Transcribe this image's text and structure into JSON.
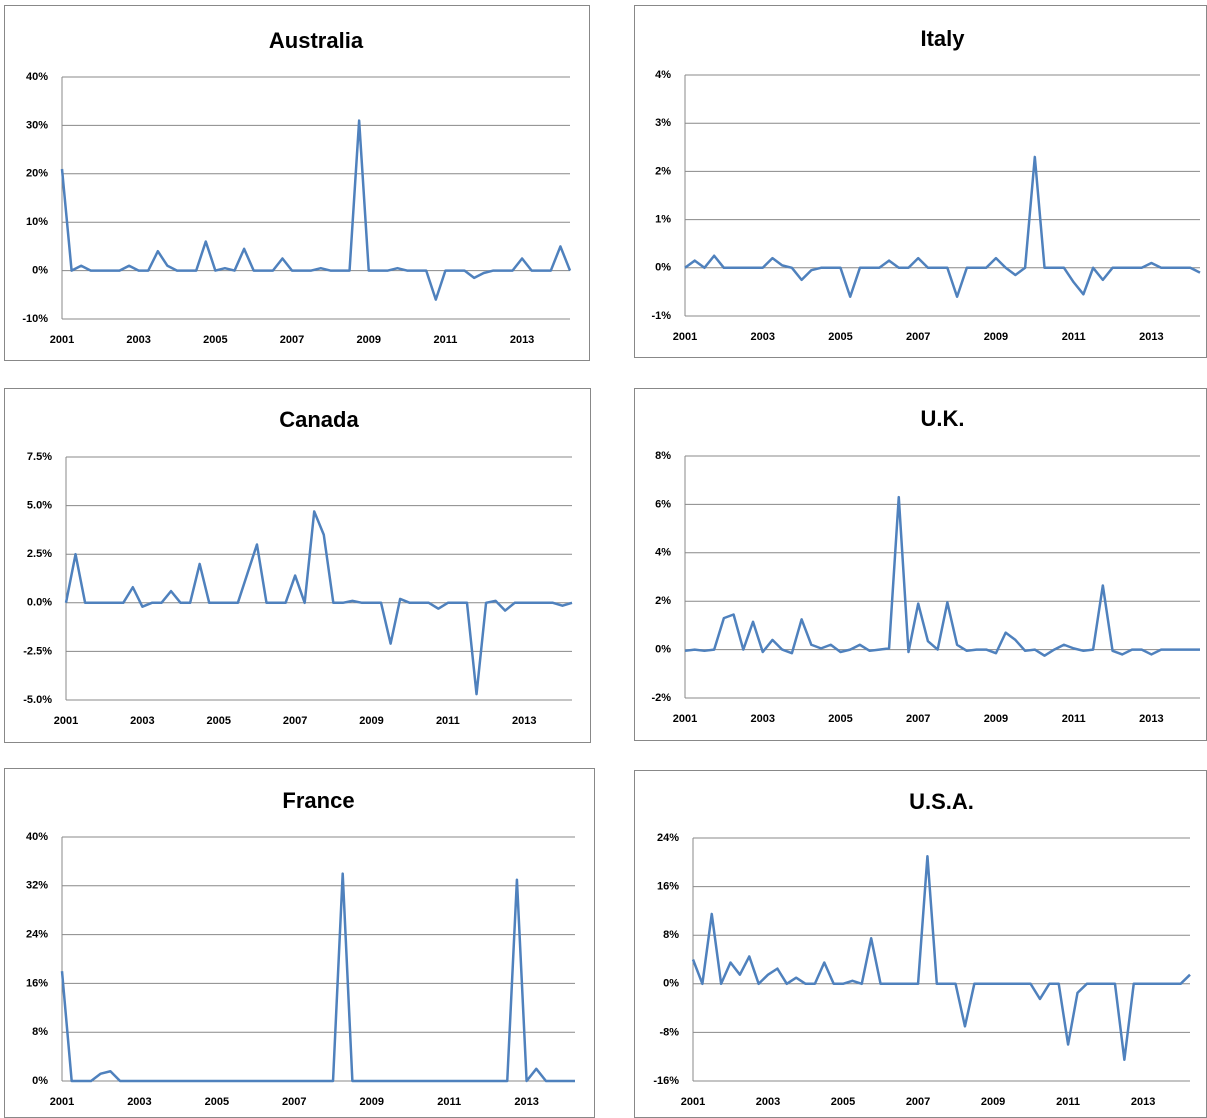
{
  "chart_data": [
    {
      "type": "line",
      "title": "Australia",
      "color": "#4f81bd",
      "grid": true,
      "categories": [
        "2001",
        null,
        null,
        null,
        null,
        null,
        null,
        null,
        "2003",
        null,
        null,
        null,
        null,
        null,
        null,
        null,
        "2005",
        null,
        null,
        null,
        null,
        null,
        null,
        null,
        "2007",
        null,
        null,
        null,
        null,
        null,
        null,
        null,
        "2009",
        null,
        null,
        null,
        null,
        null,
        null,
        null,
        "2011",
        null,
        null,
        null,
        null,
        null,
        null,
        null,
        "2013",
        null,
        null,
        null,
        null,
        null
      ],
      "values": [
        21,
        0,
        1,
        0,
        0,
        0,
        0,
        1,
        0,
        0,
        4,
        1,
        0,
        0,
        0,
        6,
        0,
        0.5,
        0,
        4.5,
        0,
        0,
        0,
        2.5,
        0,
        0,
        0,
        0.5,
        0,
        0,
        0,
        31,
        0,
        0,
        0,
        0.5,
        0,
        0,
        0,
        -6,
        0,
        0,
        0,
        -1.5,
        -0.5,
        0,
        0,
        0,
        2.5,
        0,
        0,
        0,
        5,
        0
      ],
      "ylim": [
        -10,
        40
      ],
      "yticks": [
        {
          "value": -10,
          "label": "-10%"
        },
        {
          "value": 0,
          "label": "0%"
        },
        {
          "value": 10,
          "label": "10%"
        },
        {
          "value": 20,
          "label": "20%"
        },
        {
          "value": 30,
          "label": "30%"
        },
        {
          "value": 40,
          "label": "40%"
        }
      ]
    },
    {
      "type": "line",
      "title": "Italy",
      "color": "#4f81bd",
      "grid": true,
      "categories": [
        "2001",
        null,
        null,
        null,
        null,
        null,
        null,
        null,
        "2003",
        null,
        null,
        null,
        null,
        null,
        null,
        null,
        "2005",
        null,
        null,
        null,
        null,
        null,
        null,
        null,
        "2007",
        null,
        null,
        null,
        null,
        null,
        null,
        null,
        "2009",
        null,
        null,
        null,
        null,
        null,
        null,
        null,
        "2011",
        null,
        null,
        null,
        null,
        null,
        null,
        null,
        "2013",
        null,
        null,
        null,
        null,
        null
      ],
      "values": [
        0,
        0.15,
        0,
        0.25,
        0,
        0,
        0,
        0,
        0,
        0.2,
        0.05,
        0,
        -0.25,
        -0.05,
        0,
        0,
        0,
        -0.6,
        0,
        0,
        0,
        0.15,
        0,
        0,
        0.2,
        0,
        0,
        0,
        -0.6,
        0,
        0,
        0,
        0.2,
        0,
        -0.15,
        0,
        2.3,
        0,
        0,
        0,
        -0.3,
        -0.55,
        0,
        -0.25,
        0,
        0,
        0,
        0,
        0.1,
        0,
        0,
        0,
        0,
        -0.1
      ],
      "ylim": [
        -1,
        4
      ],
      "yticks": [
        {
          "value": -1,
          "label": "-1%"
        },
        {
          "value": 0,
          "label": "0%"
        },
        {
          "value": 1,
          "label": "1%"
        },
        {
          "value": 2,
          "label": "2%"
        },
        {
          "value": 3,
          "label": "3%"
        },
        {
          "value": 4,
          "label": "4%"
        }
      ]
    },
    {
      "type": "line",
      "title": "Canada",
      "color": "#4f81bd",
      "grid": true,
      "categories": [
        "2001",
        null,
        null,
        null,
        null,
        null,
        null,
        null,
        "2003",
        null,
        null,
        null,
        null,
        null,
        null,
        null,
        "2005",
        null,
        null,
        null,
        null,
        null,
        null,
        null,
        "2007",
        null,
        null,
        null,
        null,
        null,
        null,
        null,
        "2009",
        null,
        null,
        null,
        null,
        null,
        null,
        null,
        "2011",
        null,
        null,
        null,
        null,
        null,
        null,
        null,
        "2013",
        null,
        null,
        null,
        null,
        null
      ],
      "values": [
        0,
        2.5,
        0,
        0,
        0,
        0,
        0,
        0.8,
        -0.2,
        0,
        0,
        0.6,
        0,
        0,
        2,
        0,
        0,
        0,
        0,
        1.5,
        3,
        0,
        0,
        0,
        1.4,
        0,
        4.7,
        3.5,
        0,
        0,
        0.1,
        0,
        0,
        0,
        -2.1,
        0.2,
        0,
        0,
        0,
        -0.3,
        0,
        0,
        0,
        -4.7,
        0,
        0.1,
        -0.4,
        0,
        0,
        0,
        0,
        0,
        -0.15,
        0
      ],
      "ylim": [
        -5,
        7.5
      ],
      "yticks": [
        {
          "value": -5,
          "label": "-5.0%"
        },
        {
          "value": -2.5,
          "label": "-2.5%"
        },
        {
          "value": 0,
          "label": "0.0%"
        },
        {
          "value": 2.5,
          "label": "2.5%"
        },
        {
          "value": 5,
          "label": "5.0%"
        },
        {
          "value": 7.5,
          "label": "7.5%"
        }
      ]
    },
    {
      "type": "line",
      "title": "U.K.",
      "color": "#4f81bd",
      "grid": true,
      "categories": [
        "2001",
        null,
        null,
        null,
        null,
        null,
        null,
        null,
        "2003",
        null,
        null,
        null,
        null,
        null,
        null,
        null,
        "2005",
        null,
        null,
        null,
        null,
        null,
        null,
        null,
        "2007",
        null,
        null,
        null,
        null,
        null,
        null,
        null,
        "2009",
        null,
        null,
        null,
        null,
        null,
        null,
        null,
        "2011",
        null,
        null,
        null,
        null,
        null,
        null,
        null,
        "2013",
        null,
        null,
        null,
        null,
        null
      ],
      "values": [
        -0.05,
        0,
        -0.05,
        0,
        1.3,
        1.45,
        0,
        1.15,
        -0.1,
        0.4,
        0,
        -0.15,
        1.25,
        0.2,
        0.05,
        0.2,
        -0.1,
        0,
        0.2,
        -0.05,
        0,
        0.05,
        6.3,
        -0.1,
        1.9,
        0.35,
        0,
        1.95,
        0.2,
        -0.05,
        0,
        0,
        -0.15,
        0.7,
        0.4,
        -0.05,
        0,
        -0.25,
        0,
        0.2,
        0.05,
        -0.05,
        0,
        2.65,
        -0.05,
        -0.2,
        0,
        0,
        -0.2,
        0,
        0,
        0,
        0,
        0
      ],
      "ylim": [
        -2,
        8
      ],
      "yticks": [
        {
          "value": -2,
          "label": "-2%"
        },
        {
          "value": 0,
          "label": "0%"
        },
        {
          "value": 2,
          "label": "2%"
        },
        {
          "value": 4,
          "label": "4%"
        },
        {
          "value": 6,
          "label": "6%"
        },
        {
          "value": 8,
          "label": "8%"
        }
      ]
    },
    {
      "type": "line",
      "title": "France",
      "color": "#4f81bd",
      "grid": true,
      "categories": [
        "2001",
        null,
        null,
        null,
        null,
        null,
        null,
        null,
        "2003",
        null,
        null,
        null,
        null,
        null,
        null,
        null,
        "2005",
        null,
        null,
        null,
        null,
        null,
        null,
        null,
        "2007",
        null,
        null,
        null,
        null,
        null,
        null,
        null,
        "2009",
        null,
        null,
        null,
        null,
        null,
        null,
        null,
        "2011",
        null,
        null,
        null,
        null,
        null,
        null,
        null,
        "2013",
        null,
        null,
        null,
        null,
        null
      ],
      "values": [
        18,
        0,
        0,
        0,
        1.2,
        1.6,
        0,
        0,
        0,
        0,
        0,
        0,
        0,
        0,
        0,
        0,
        0,
        0,
        0,
        0,
        0,
        0,
        0,
        0,
        0,
        0,
        0,
        0,
        0,
        34,
        0,
        0,
        0,
        0,
        0,
        0,
        0,
        0,
        0,
        0,
        0,
        0,
        0,
        0,
        0,
        0,
        0,
        33,
        0,
        2,
        0,
        0,
        0,
        0
      ],
      "ylim": [
        0,
        40
      ],
      "yticks": [
        {
          "value": 0,
          "label": "0%"
        },
        {
          "value": 8,
          "label": "8%"
        },
        {
          "value": 16,
          "label": "16%"
        },
        {
          "value": 24,
          "label": "24%"
        },
        {
          "value": 32,
          "label": "32%"
        },
        {
          "value": 40,
          "label": "40%"
        }
      ]
    },
    {
      "type": "line",
      "title": "U.S.A.",
      "color": "#4f81bd",
      "grid": true,
      "categories": [
        "2001",
        null,
        null,
        null,
        null,
        null,
        null,
        null,
        "2003",
        null,
        null,
        null,
        null,
        null,
        null,
        null,
        "2005",
        null,
        null,
        null,
        null,
        null,
        null,
        null,
        "2007",
        null,
        null,
        null,
        null,
        null,
        null,
        null,
        "2009",
        null,
        null,
        null,
        null,
        null,
        null,
        null,
        "2011",
        null,
        null,
        null,
        null,
        null,
        null,
        null,
        "2013",
        null,
        null,
        null,
        null,
        null
      ],
      "values": [
        4,
        0,
        11.5,
        0,
        3.5,
        1.5,
        4.5,
        0,
        1.5,
        2.5,
        0,
        1,
        0,
        0,
        3.5,
        0,
        0,
        0.5,
        0,
        7.5,
        0,
        0,
        0,
        0,
        0,
        21,
        0,
        0,
        0,
        -7,
        0,
        0,
        0,
        0,
        0,
        0,
        0,
        -2.5,
        0,
        0,
        -10,
        -1.5,
        0,
        0,
        0,
        0,
        -12.5,
        0,
        0,
        0,
        0,
        0,
        0,
        1.5
      ],
      "ylim": [
        -16,
        24
      ],
      "yticks": [
        {
          "value": -16,
          "label": "-16%"
        },
        {
          "value": -8,
          "label": "-8%"
        },
        {
          "value": 0,
          "label": "0%"
        },
        {
          "value": 8,
          "label": "8%"
        },
        {
          "value": 16,
          "label": "16%"
        },
        {
          "value": 24,
          "label": "24%"
        }
      ]
    }
  ]
}
